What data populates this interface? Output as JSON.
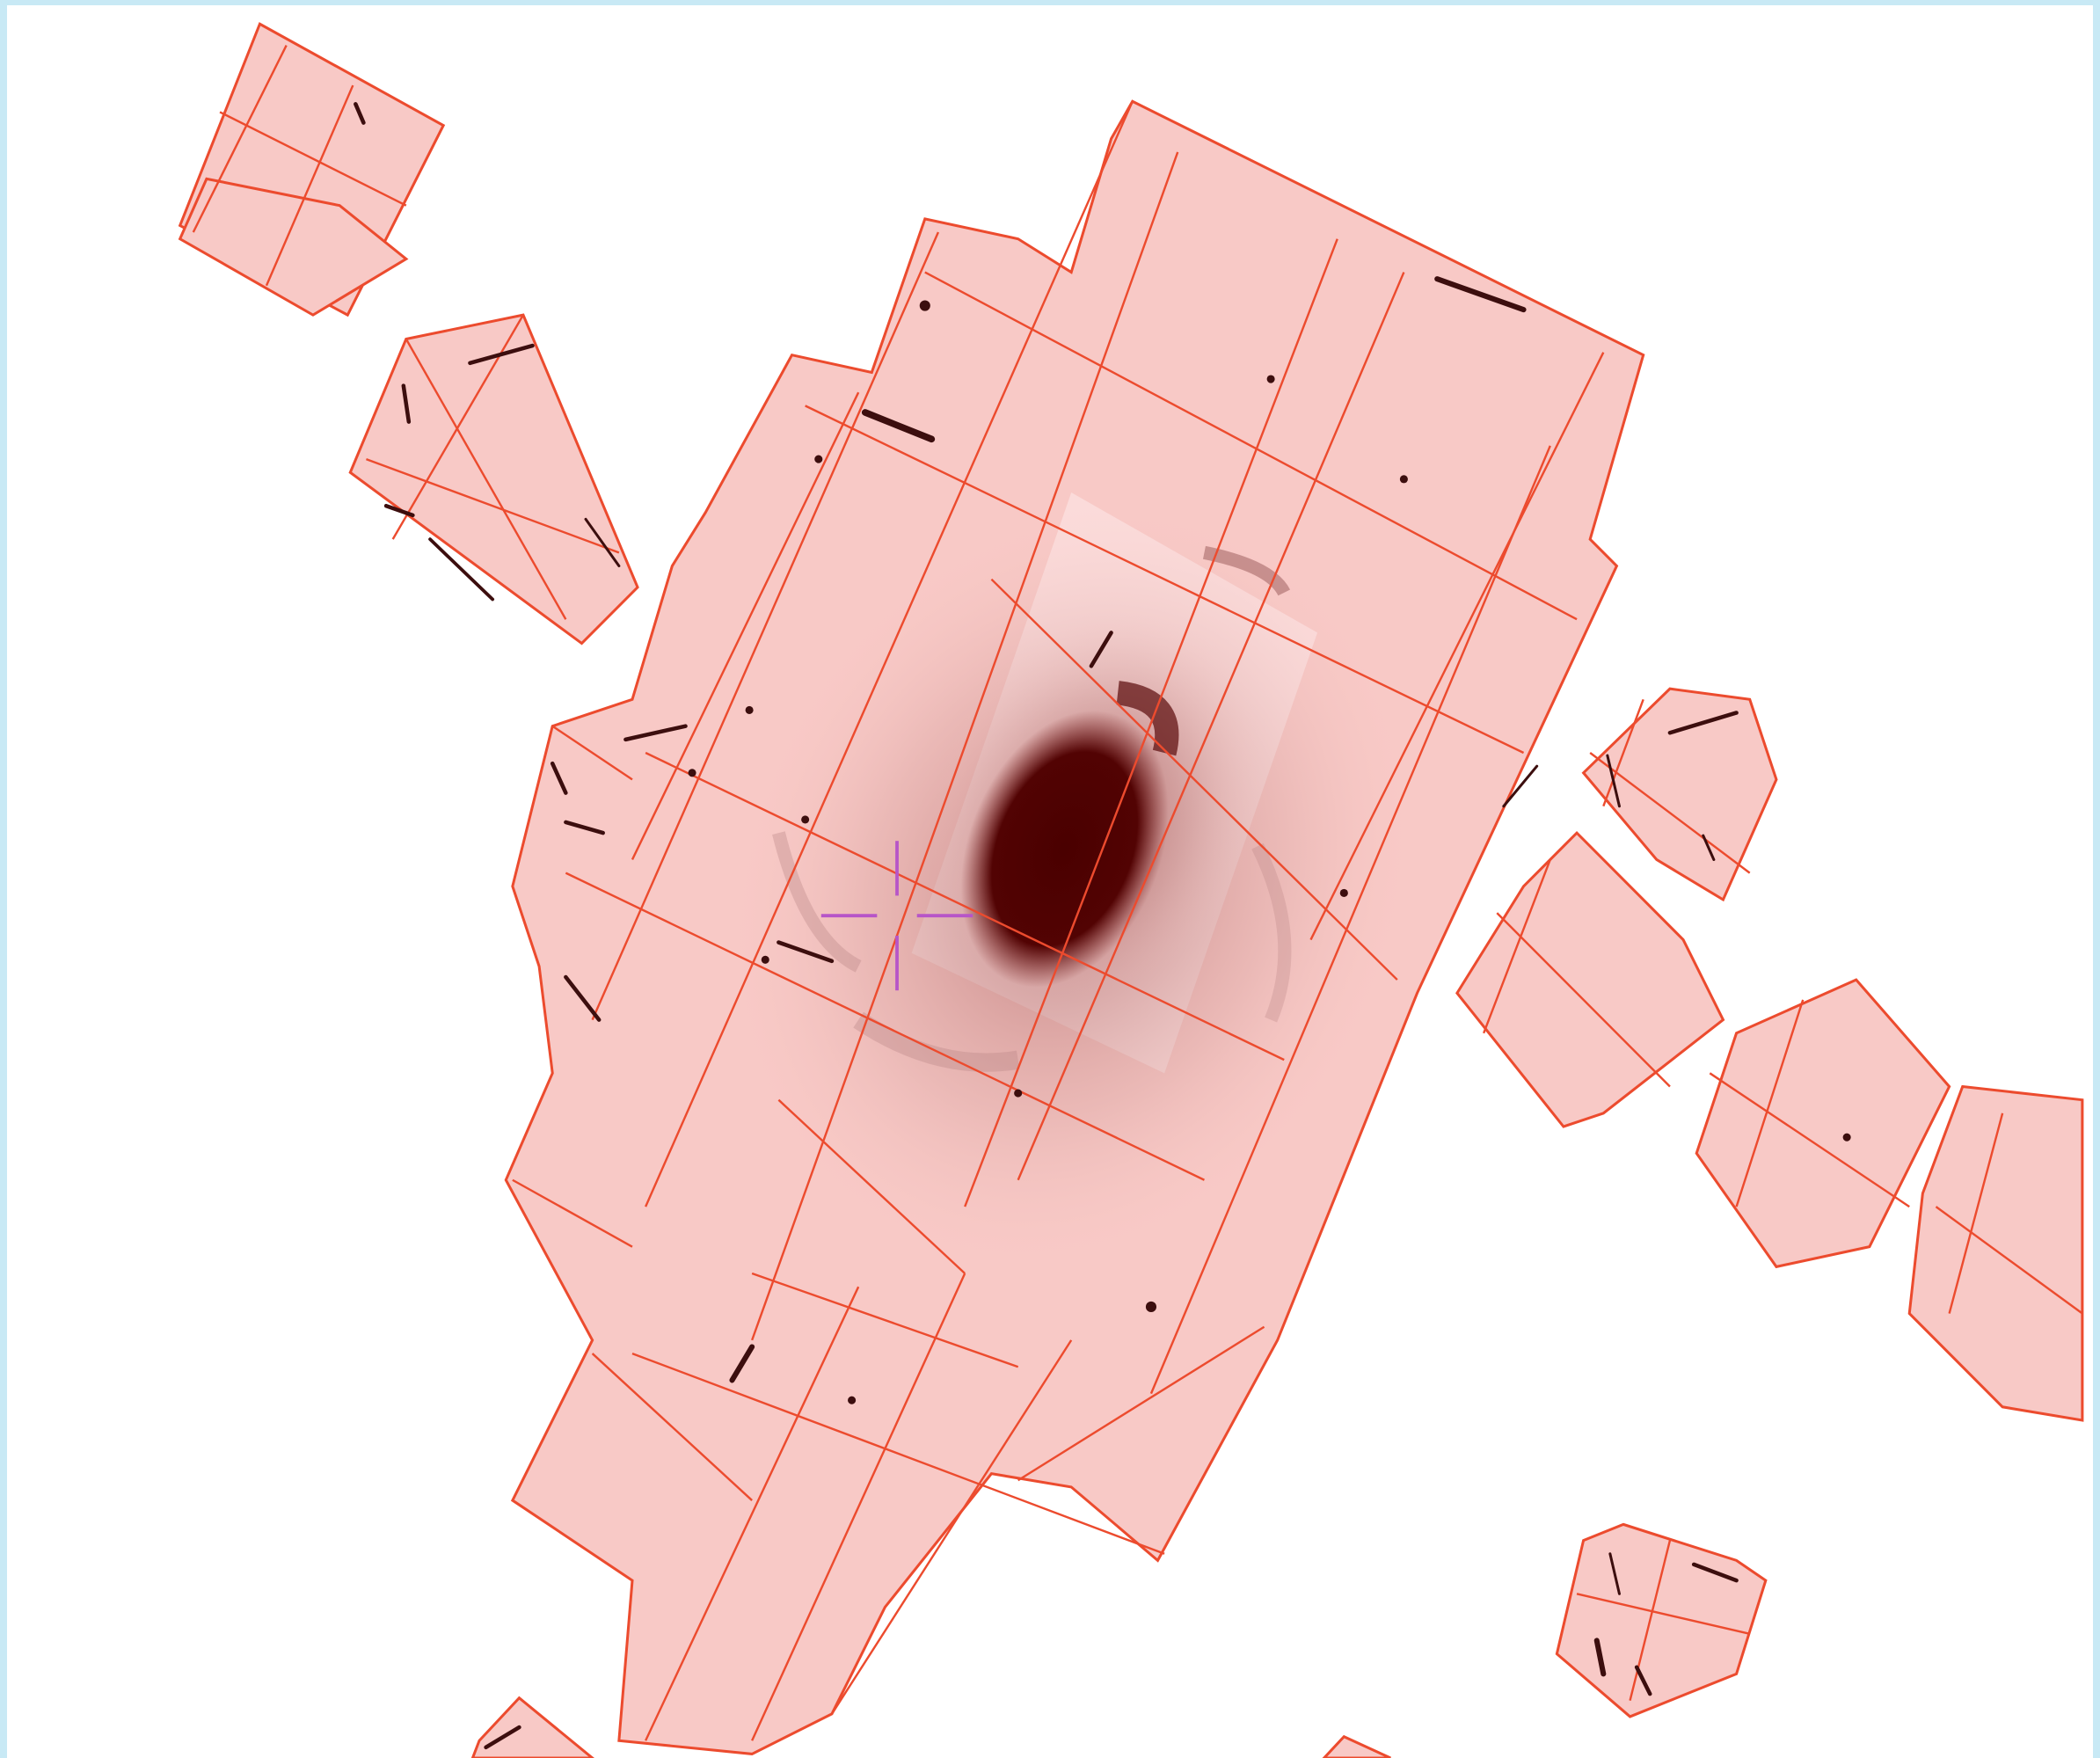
{
  "viewer": {
    "colors": {
      "background": "#ffffff",
      "frame": "#c8e9f5",
      "footprint_fill": "#f8c9c6",
      "footprint_edge": "#ec4b2e",
      "galaxy_core": "#4a0000",
      "crosshair": "#b755c8"
    },
    "icons": [
      "crosshair-icon"
    ]
  }
}
